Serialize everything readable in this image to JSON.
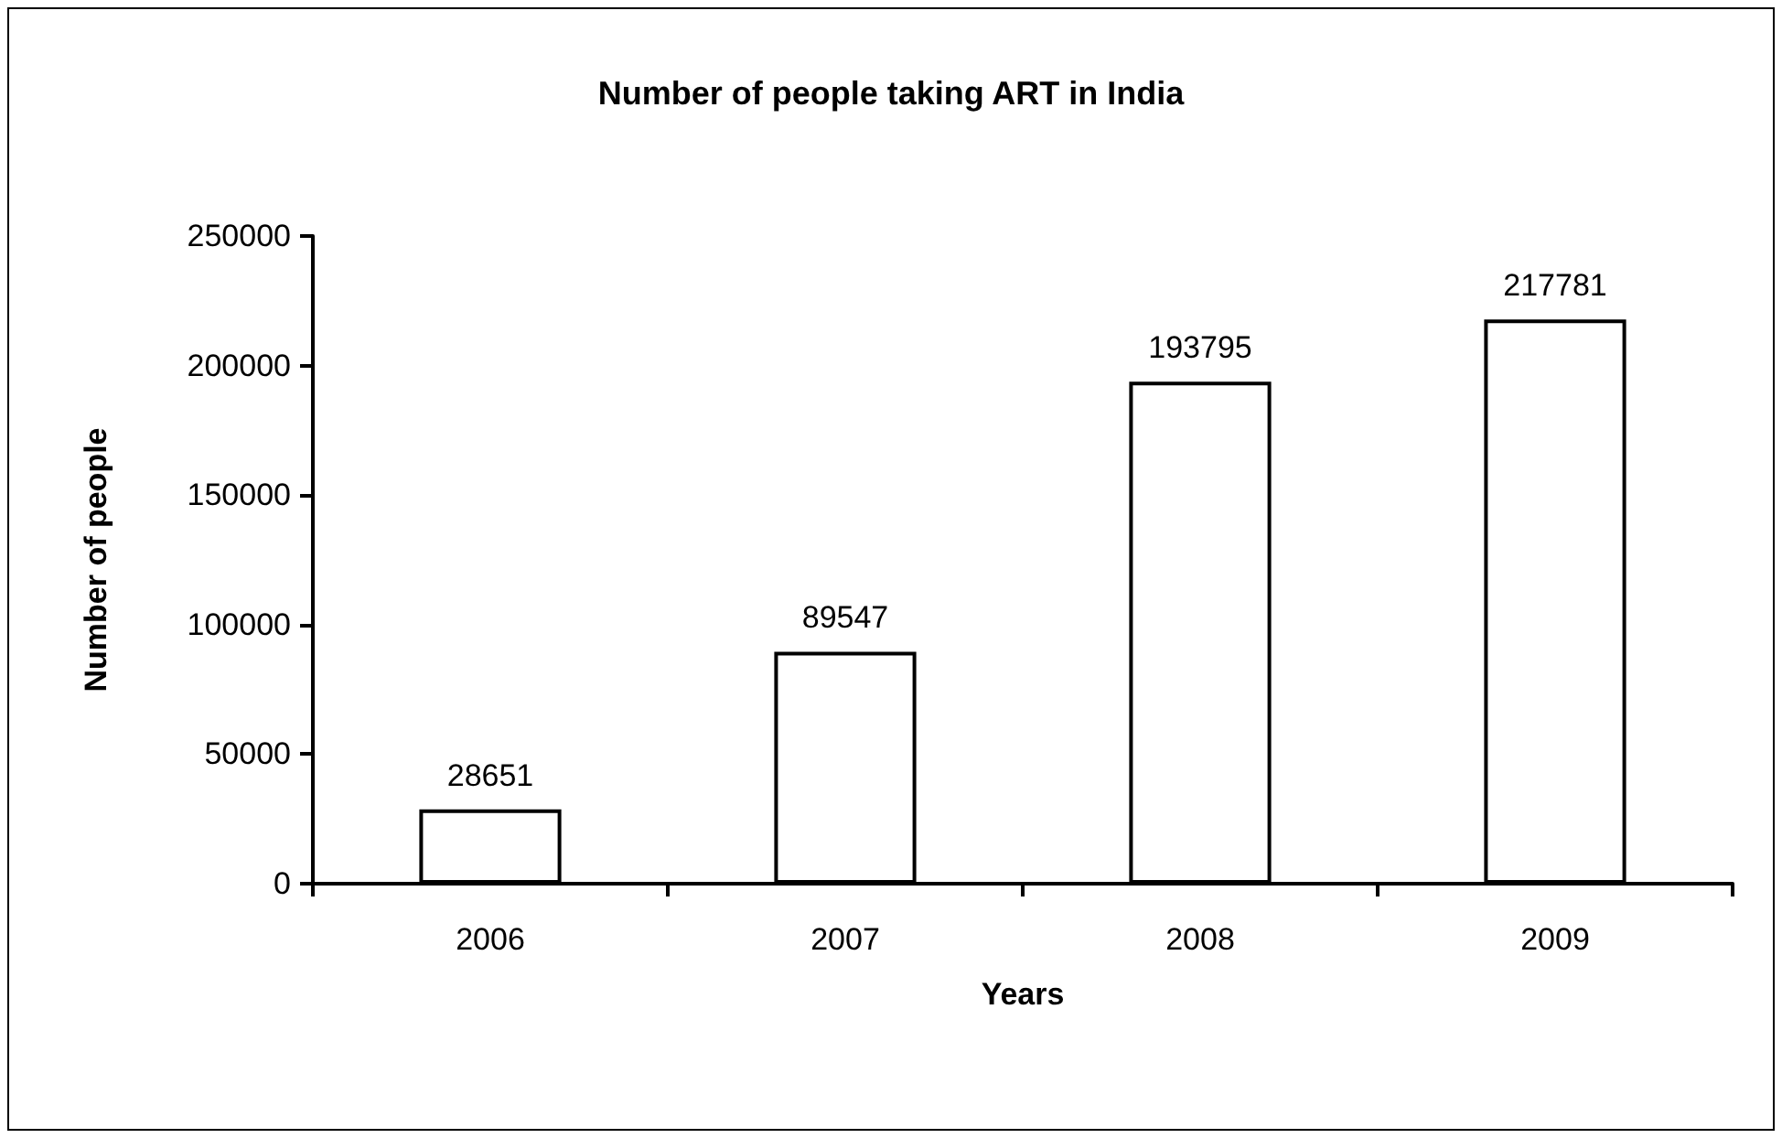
{
  "chart_data": {
    "type": "bar",
    "title": "Number of people taking ART in India",
    "xlabel": "Years",
    "ylabel": "Number of people",
    "categories": [
      "2006",
      "2007",
      "2008",
      "2009"
    ],
    "values": [
      28651,
      89547,
      193795,
      217781
    ],
    "color": "#ffffff",
    "ylim": [
      0,
      250000
    ],
    "yticks": [
      0,
      50000,
      100000,
      150000,
      200000,
      250000
    ],
    "grid": false,
    "data_labels": true
  }
}
